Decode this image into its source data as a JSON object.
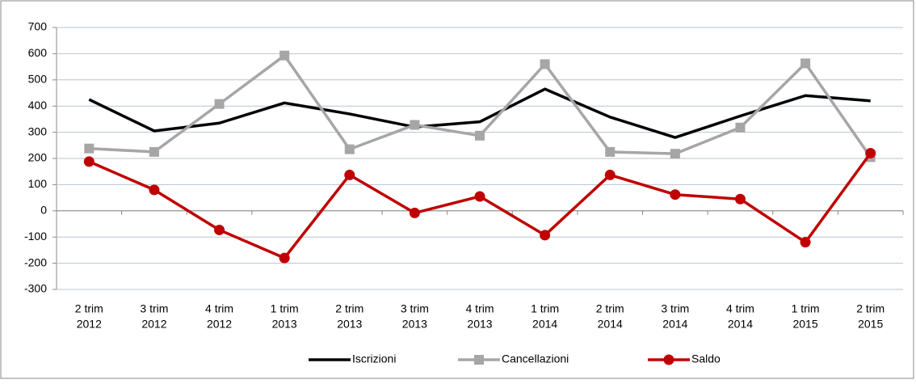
{
  "chart_data": {
    "type": "line",
    "categories": [
      [
        "2 trim",
        "2012"
      ],
      [
        "3 trim",
        "2012"
      ],
      [
        "4 trim",
        "2012"
      ],
      [
        "1 trim",
        "2013"
      ],
      [
        "2 trim",
        "2013"
      ],
      [
        "3 trim",
        "2013"
      ],
      [
        "4 trim",
        "2013"
      ],
      [
        "1 trim",
        "2014"
      ],
      [
        "2 trim",
        "2014"
      ],
      [
        "3 trim",
        "2014"
      ],
      [
        "4 trim",
        "2014"
      ],
      [
        "1 trim",
        "2015"
      ],
      [
        "2 trim",
        "2015"
      ]
    ],
    "series": [
      {
        "name": "Iscrizioni",
        "color": "#000000",
        "marker": "none",
        "values": [
          425,
          305,
          335,
          412,
          370,
          320,
          340,
          465,
          358,
          280,
          362,
          440,
          420
        ]
      },
      {
        "name": "Cancellazioni",
        "color": "#a6a6a6",
        "marker": "square",
        "values": [
          238,
          225,
          408,
          593,
          235,
          328,
          287,
          560,
          225,
          218,
          318,
          563,
          205
        ]
      },
      {
        "name": "Saldo",
        "color": "#c00000",
        "marker": "circle",
        "values": [
          188,
          80,
          -73,
          -180,
          137,
          -8,
          55,
          -93,
          137,
          62,
          45,
          -120,
          220
        ]
      }
    ],
    "ylim": [
      -300,
      700
    ],
    "yticks": [
      -300,
      -200,
      -100,
      0,
      100,
      200,
      300,
      400,
      500,
      600,
      700
    ],
    "grid": true
  }
}
